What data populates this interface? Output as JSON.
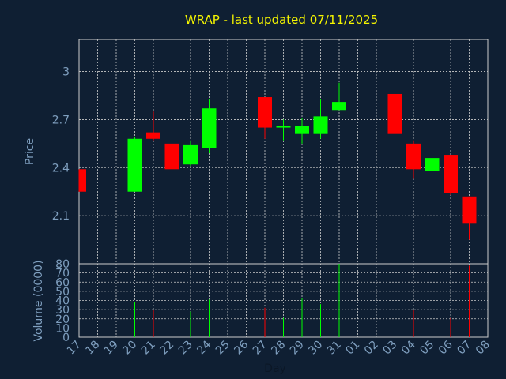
{
  "chart_data": [
    {
      "type": "candlestick",
      "title": "WRAP - last updated 07/11/2025",
      "ylabel": "Price",
      "ylim": [
        1.8,
        3.2
      ],
      "yticks": [
        2.1,
        2.4,
        2.7,
        3
      ],
      "ytick_labels": [
        "2.1",
        "2.4",
        "2.7",
        "3"
      ],
      "grid": true,
      "colors": {
        "up": "#00ff00",
        "down": "#ff0000",
        "background": "#0f1f33",
        "grid": "#cccccc",
        "title": "#f5f500",
        "axis_text": "#7f9fbf"
      },
      "x": [
        "17",
        "18",
        "19",
        "20",
        "21",
        "22",
        "23",
        "24",
        "25",
        "26",
        "27",
        "28",
        "29",
        "30",
        "31",
        "01",
        "02",
        "03",
        "04",
        "05",
        "06",
        "07",
        "08"
      ],
      "candles": [
        {
          "day": "17",
          "open": 2.39,
          "high": 2.39,
          "low": 2.25,
          "close": 2.25
        },
        {
          "day": "20",
          "open": 2.25,
          "high": 2.59,
          "low": 2.25,
          "close": 2.58
        },
        {
          "day": "21",
          "open": 2.62,
          "high": 2.75,
          "low": 2.57,
          "close": 2.58
        },
        {
          "day": "22",
          "open": 2.55,
          "high": 2.62,
          "low": 2.37,
          "close": 2.39
        },
        {
          "day": "23",
          "open": 2.42,
          "high": 2.57,
          "low": 2.41,
          "close": 2.54
        },
        {
          "day": "24",
          "open": 2.52,
          "high": 2.83,
          "low": 2.49,
          "close": 2.77
        },
        {
          "day": "27",
          "open": 2.84,
          "high": 2.84,
          "low": 2.58,
          "close": 2.65
        },
        {
          "day": "28",
          "open": 2.65,
          "high": 2.7,
          "low": 2.57,
          "close": 2.66
        },
        {
          "day": "29",
          "open": 2.61,
          "high": 2.71,
          "low": 2.55,
          "close": 2.66
        },
        {
          "day": "30",
          "open": 2.61,
          "high": 2.83,
          "low": 2.58,
          "close": 2.72
        },
        {
          "day": "31",
          "open": 2.76,
          "high": 2.93,
          "low": 2.76,
          "close": 2.81
        },
        {
          "day": "03",
          "open": 2.86,
          "high": 2.86,
          "low": 2.59,
          "close": 2.61
        },
        {
          "day": "04",
          "open": 2.55,
          "high": 2.57,
          "low": 2.33,
          "close": 2.39
        },
        {
          "day": "05",
          "open": 2.38,
          "high": 2.49,
          "low": 2.37,
          "close": 2.46
        },
        {
          "day": "06",
          "open": 2.48,
          "high": 2.48,
          "low": 2.23,
          "close": 2.24
        },
        {
          "day": "07",
          "open": 2.22,
          "high": 2.22,
          "low": 1.95,
          "close": 2.05
        }
      ]
    },
    {
      "type": "bar",
      "xlabel": "Day",
      "ylabel": "Volume (0000)",
      "ylim": [
        0,
        80
      ],
      "yticks": [
        0,
        10,
        20,
        30,
        40,
        50,
        60,
        70,
        80
      ],
      "ytick_labels": [
        "0",
        "10",
        "20",
        "30",
        "40",
        "50",
        "60",
        "70",
        "80"
      ],
      "grid": true,
      "x": [
        "17",
        "18",
        "19",
        "20",
        "21",
        "22",
        "23",
        "24",
        "25",
        "26",
        "27",
        "28",
        "29",
        "30",
        "31",
        "01",
        "02",
        "03",
        "04",
        "05",
        "06",
        "07",
        "08"
      ],
      "bars": [
        {
          "day": "20",
          "value": 38,
          "direction": "up"
        },
        {
          "day": "21",
          "value": 30,
          "direction": "down"
        },
        {
          "day": "22",
          "value": 29,
          "direction": "down"
        },
        {
          "day": "23",
          "value": 28,
          "direction": "up"
        },
        {
          "day": "24",
          "value": 41,
          "direction": "up"
        },
        {
          "day": "27",
          "value": 32,
          "direction": "down"
        },
        {
          "day": "28",
          "value": 21,
          "direction": "up"
        },
        {
          "day": "29",
          "value": 42,
          "direction": "up"
        },
        {
          "day": "30",
          "value": 36,
          "direction": "up"
        },
        {
          "day": "31",
          "value": 80,
          "direction": "up"
        },
        {
          "day": "03",
          "value": 21,
          "direction": "down"
        },
        {
          "day": "04",
          "value": 30,
          "direction": "down"
        },
        {
          "day": "05",
          "value": 21,
          "direction": "up"
        },
        {
          "day": "06",
          "value": 21,
          "direction": "down"
        },
        {
          "day": "07",
          "value": 78,
          "direction": "down"
        }
      ]
    }
  ]
}
